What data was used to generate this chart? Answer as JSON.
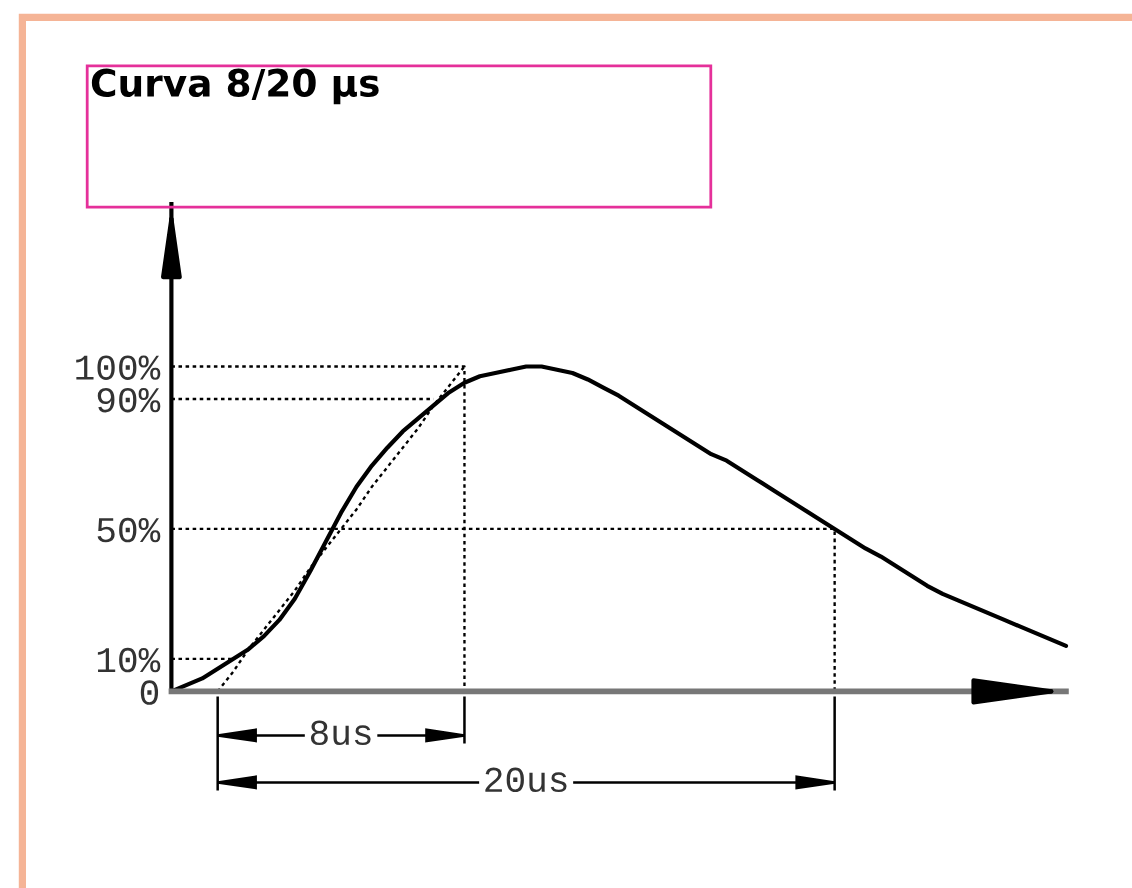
{
  "chart_data": {
    "type": "line",
    "title": "Curva 8/20 µs",
    "categories": [
      null,
      null,
      null,
      null,
      null,
      null,
      null,
      null,
      null,
      null,
      null,
      null,
      null,
      null,
      null,
      null,
      null,
      null,
      null,
      null,
      null,
      null,
      null,
      null,
      null,
      null,
      null,
      null,
      null,
      null,
      null,
      null,
      null,
      null,
      null,
      null,
      null,
      null,
      null,
      null,
      null,
      null,
      null,
      null,
      null,
      null,
      null,
      null,
      null,
      null,
      null,
      null,
      null,
      null,
      null,
      null,
      null,
      null,
      null
    ],
    "ylim": [
      0,
      150
    ],
    "yticks": [
      0,
      {
        "value": 10,
        "label": "10%"
      },
      {
        "value": 50,
        "label": "50%"
      },
      {
        "value": 90,
        "label": "90%"
      },
      {
        "value": 100,
        "label": "100%"
      }
    ],
    "tick_labels": "y",
    "series": [
      {
        "color": "#000000",
        "line_style": "solid",
        "values": [
          0,
          2,
          4,
          7,
          10,
          13,
          17,
          22,
          28.5,
          37,
          46,
          55,
          63,
          69.5,
          75,
          80,
          84,
          88,
          92,
          95,
          97,
          98,
          99,
          100,
          100,
          99,
          98,
          96,
          93.5,
          91,
          88,
          85,
          82,
          79,
          76,
          73,
          71,
          68,
          65,
          62,
          59,
          56,
          53,
          50,
          47,
          44,
          41.5,
          38.5,
          35.5,
          32.5,
          30,
          28,
          26,
          24,
          22,
          20,
          18,
          16,
          14
        ]
      },
      {
        "color": "#000000",
        "line_style": "dotted",
        "values": [
          null,
          null,
          null,
          0,
          6,
          13,
          19,
          25,
          31,
          38,
          44,
          50,
          56,
          63,
          69,
          75,
          81,
          88,
          94,
          100,
          null,
          null,
          null,
          null,
          null,
          null,
          null,
          null,
          null,
          null,
          null,
          null,
          null,
          null,
          null,
          null,
          null,
          null,
          null,
          null,
          null,
          null,
          null,
          null,
          null,
          null,
          null,
          null,
          null,
          null,
          null,
          null,
          null,
          null,
          null,
          null,
          null,
          null,
          null
        ]
      },
      {
        "type": "step",
        "color": "#000000",
        "line_style": "dotted",
        "values": [
          100,
          100,
          100,
          100,
          100,
          100,
          100,
          100,
          100,
          100,
          100,
          100,
          100,
          100,
          100,
          100,
          100,
          100,
          100,
          0,
          null,
          null,
          null,
          null,
          null,
          null,
          null,
          null,
          null,
          null,
          null,
          null,
          null,
          null,
          null,
          null,
          null,
          null,
          null,
          null,
          null,
          null,
          null,
          null,
          null,
          null,
          null,
          null,
          null,
          null,
          null,
          null,
          null,
          null,
          null,
          null,
          null,
          null,
          null
        ]
      },
      {
        "color": "#000000",
        "line_style": "dotted",
        "values": [
          90,
          90,
          90,
          90,
          90,
          90,
          90,
          90,
          90,
          90,
          90,
          90,
          90,
          90,
          90,
          90,
          90,
          90,
          null,
          null,
          null,
          null,
          null,
          null,
          null,
          null,
          null,
          null,
          null,
          null,
          null,
          null,
          null,
          null,
          null,
          null,
          null,
          null,
          null,
          null,
          null,
          null,
          null,
          null,
          null,
          null,
          null,
          null,
          null,
          null,
          null,
          null,
          null,
          null,
          null,
          null,
          null,
          null,
          null
        ]
      },
      {
        "type": "step",
        "color": "#000000",
        "line_style": "dotted",
        "values": [
          50,
          50,
          50,
          50,
          50,
          50,
          50,
          50,
          50,
          50,
          50,
          50,
          50,
          50,
          50,
          50,
          50,
          50,
          50,
          50,
          50,
          50,
          50,
          50,
          50,
          50,
          50,
          50,
          50,
          50,
          50,
          50,
          50,
          50,
          50,
          50,
          50,
          50,
          50,
          50,
          50,
          50,
          50,
          0,
          null,
          null,
          null,
          null,
          null,
          null,
          null,
          null,
          null,
          null,
          null,
          null,
          null,
          null,
          null
        ]
      },
      {
        "color": "#000000",
        "line_style": "dotted",
        "values": [
          10,
          10,
          10,
          10,
          10,
          null,
          null,
          null,
          null,
          null,
          null,
          null,
          null,
          null,
          null,
          null,
          null,
          null,
          null,
          null,
          null,
          null,
          null,
          null,
          null,
          null,
          null,
          null,
          null,
          null,
          null,
          null,
          null,
          null,
          null,
          null,
          null,
          null,
          null,
          null,
          null,
          null,
          null,
          null,
          null,
          null,
          null,
          null,
          null,
          null,
          null,
          null,
          null,
          null,
          null,
          null,
          null,
          null,
          null
        ]
      }
    ],
    "annotations": [
      "8us",
      "20us"
    ]
  }
}
